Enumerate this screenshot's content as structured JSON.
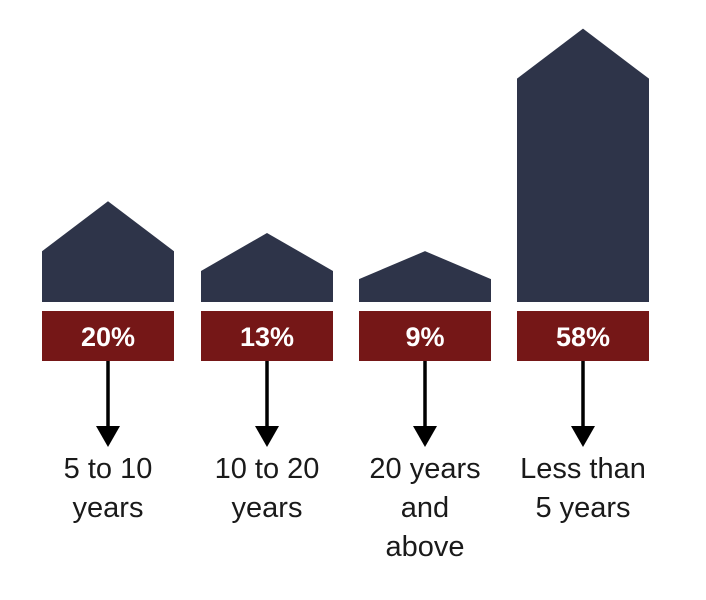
{
  "colors": {
    "house": "#2e3449",
    "label_band": "#751717",
    "label_text": "#ffffff",
    "arrow": "#000000",
    "category_text": "#1a1a1a"
  },
  "chart_data": {
    "type": "bar",
    "categories": [
      [
        "5 to 10",
        "years"
      ],
      [
        "10 to 20",
        "years"
      ],
      [
        "20 years",
        "and",
        "above"
      ],
      [
        "Less than",
        "5 years"
      ]
    ],
    "values": [
      20,
      13,
      9,
      58
    ],
    "value_labels": [
      "20%",
      "13%",
      "9%",
      "58%"
    ],
    "unit": "%",
    "title": "",
    "xlabel": "",
    "ylabel": "",
    "legend": "none",
    "grid": false
  }
}
